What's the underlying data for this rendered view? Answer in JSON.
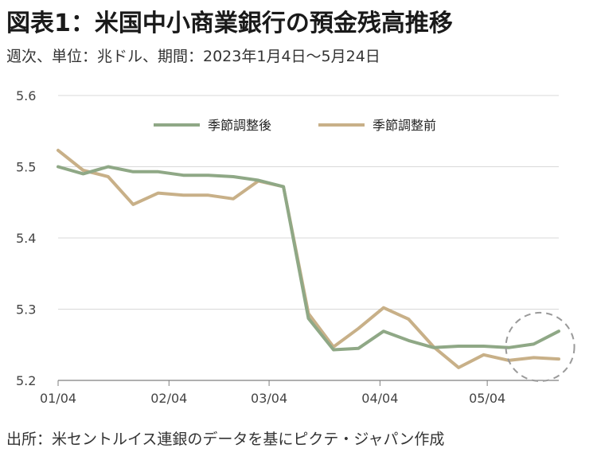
{
  "header": {
    "title": "図表1：米国中小商業銀行の預金残高推移",
    "subtitle": "週次、単位：兆ドル、期間：2023年1月4日～5月24日"
  },
  "footer": {
    "source": "出所：米セントルイス連銀のデータを基にピクテ・ジャパン作成"
  },
  "chart_data": {
    "type": "line",
    "title": "図表1：米国中小商業銀行の預金残高推移",
    "subtitle": "週次、単位：兆ドル、期間：2023年1月4日～5月24日",
    "x": [
      "2023-01-04",
      "2023-01-11",
      "2023-01-18",
      "2023-01-25",
      "2023-02-01",
      "2023-02-08",
      "2023-02-15",
      "2023-02-22",
      "2023-03-01",
      "2023-03-08",
      "2023-03-15",
      "2023-03-22",
      "2023-03-29",
      "2023-04-05",
      "2023-04-12",
      "2023-04-19",
      "2023-04-26",
      "2023-05-03",
      "2023-05-10",
      "2023-05-17",
      "2023-05-24"
    ],
    "x_ticks": [
      "01/04",
      "02/04",
      "03/04",
      "04/04",
      "05/04"
    ],
    "y_ticks": [
      "5.2",
      "5.3",
      "5.4",
      "5.5",
      "5.6"
    ],
    "ylim": [
      5.2,
      5.6
    ],
    "grid": true,
    "legend_position": "top-center",
    "series": [
      {
        "name": "季節調整後",
        "color": "#8fa886",
        "values": [
          5.5,
          5.49,
          5.5,
          5.493,
          5.493,
          5.488,
          5.488,
          5.486,
          5.481,
          5.472,
          5.287,
          5.243,
          5.245,
          5.269,
          5.256,
          5.246,
          5.248,
          5.248,
          5.246,
          5.251,
          5.269
        ]
      },
      {
        "name": "季節調整前",
        "color": "#c8b088",
        "values": [
          5.523,
          5.495,
          5.486,
          5.447,
          5.463,
          5.46,
          5.46,
          5.455,
          5.48,
          5.472,
          5.294,
          5.247,
          5.273,
          5.302,
          5.286,
          5.247,
          5.218,
          5.236,
          5.228,
          5.232,
          5.23
        ]
      }
    ],
    "annotation": {
      "type": "dashed-circle",
      "color": "#9a9a9a",
      "center_x": "2023-05-17",
      "center_y": 5.247
    }
  }
}
